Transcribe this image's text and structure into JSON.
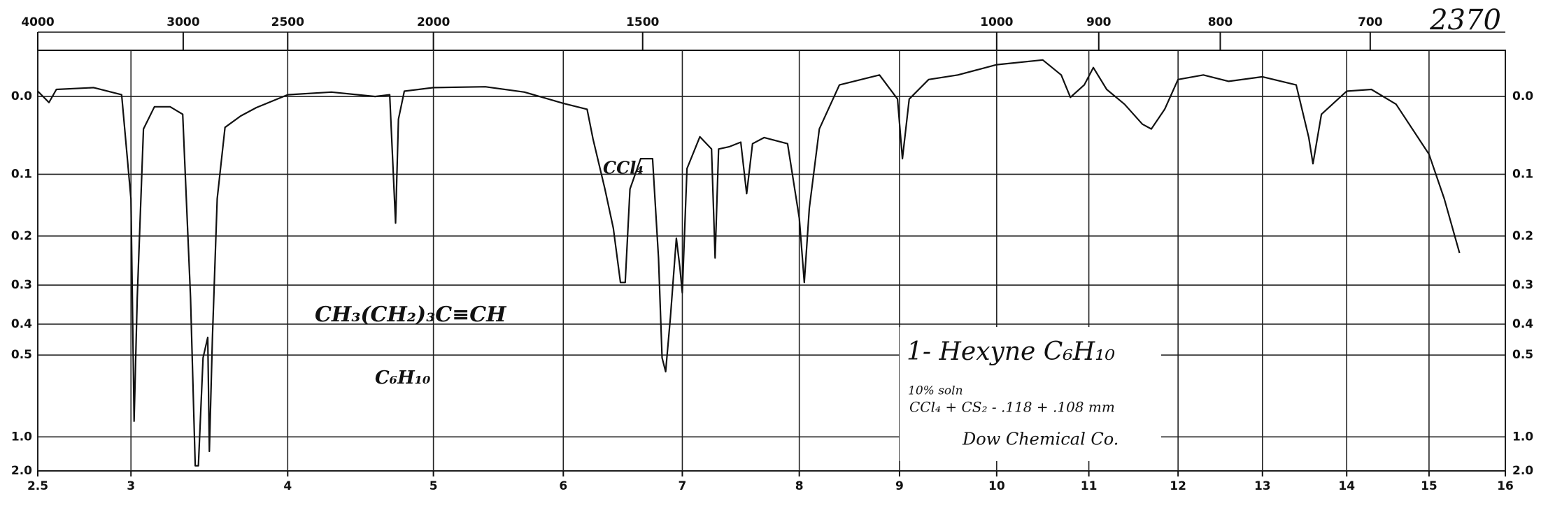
{
  "chart_data": {
    "type": "line",
    "title": "2370",
    "annotations": [
      "CH₃(CH₂)₃C≡CH",
      "C₆H₁₀",
      "CCl₄",
      "1- Hexyne  C₆H₁₀",
      "10% soln",
      "CCl₄ + CS₂  - .118 + .108 mm",
      "Dow Chemical Co."
    ],
    "color": "#111111",
    "y_scale": "absorbance",
    "grid": true,
    "xlim": [
      2.5,
      16
    ],
    "xticks": [
      2.5,
      3,
      4,
      5,
      6,
      7,
      8,
      9,
      10,
      11,
      12,
      13,
      14,
      15,
      16
    ],
    "x2ticks": [
      4000,
      3000,
      2500,
      2000,
      1500,
      1000,
      900,
      800,
      700
    ],
    "ylim": [
      -0.05,
      2
    ],
    "yticks": [
      {
        "value": 0,
        "label": "0.0"
      },
      0.1,
      0.2,
      0.3,
      0.4,
      0.5,
      {
        "value": 1,
        "label": "1.0"
      },
      {
        "value": 2,
        "label": "2.0"
      }
    ],
    "x": [
      2.5,
      2.56,
      2.6,
      2.8,
      2.95,
      3.0,
      3.02,
      3.04,
      3.08,
      3.15,
      3.25,
      3.33,
      3.38,
      3.41,
      3.43,
      3.46,
      3.49,
      3.5,
      3.52,
      3.55,
      3.6,
      3.7,
      3.8,
      4.0,
      4.3,
      4.6,
      4.7,
      4.74,
      4.76,
      4.8,
      5.0,
      5.4,
      5.7,
      6.0,
      6.2,
      6.25,
      6.35,
      6.42,
      6.48,
      6.52,
      6.56,
      6.65,
      6.75,
      6.8,
      6.83,
      6.86,
      6.9,
      6.95,
      6.98,
      7.0,
      7.04,
      7.15,
      7.25,
      7.28,
      7.31,
      7.4,
      7.5,
      7.55,
      7.6,
      7.7,
      7.9,
      8.0,
      8.05,
      8.1,
      8.2,
      8.4,
      8.8,
      8.98,
      9.03,
      9.1,
      9.3,
      9.6,
      10.0,
      10.5,
      10.7,
      10.8,
      10.95,
      11.05,
      11.2,
      11.4,
      11.6,
      11.7,
      11.85,
      12.0,
      12.3,
      12.6,
      13.0,
      13.4,
      13.55,
      13.6,
      13.7,
      14.0,
      14.3,
      14.6,
      15.0,
      15.2,
      15.4
    ],
    "values": [
      -0.006,
      0.007,
      -0.008,
      -0.01,
      -0.002,
      0.137,
      0.85,
      0.33,
      0.039,
      0.012,
      0.012,
      0.021,
      0.33,
      1.63,
      1.63,
      0.51,
      0.44,
      1.21,
      0.44,
      0.137,
      0.037,
      0.023,
      0.013,
      -0.002,
      -0.005,
      0,
      -0.002,
      0.177,
      0.027,
      -0.006,
      -0.01,
      -0.011,
      -0.005,
      0.008,
      0.015,
      0.052,
      0.122,
      0.186,
      0.294,
      0.294,
      0.122,
      0.078,
      0.078,
      0.242,
      0.51,
      0.565,
      0.381,
      0.204,
      0.262,
      0.318,
      0.092,
      0.049,
      0.065,
      0.242,
      0.065,
      0.062,
      0.056,
      0.129,
      0.058,
      0.05,
      0.058,
      0.169,
      0.294,
      0.152,
      0.039,
      -0.013,
      -0.024,
      0.003,
      0.078,
      0.003,
      -0.019,
      -0.024,
      -0.035,
      -0.04,
      -0.024,
      0.001,
      -0.013,
      -0.032,
      -0.008,
      0.009,
      0.033,
      0.039,
      0.015,
      -0.019,
      -0.024,
      -0.017,
      -0.022,
      -0.013,
      0.05,
      0.085,
      0.021,
      -0.006,
      -0.008,
      0.009,
      0.072,
      0.137,
      0.232
    ]
  }
}
